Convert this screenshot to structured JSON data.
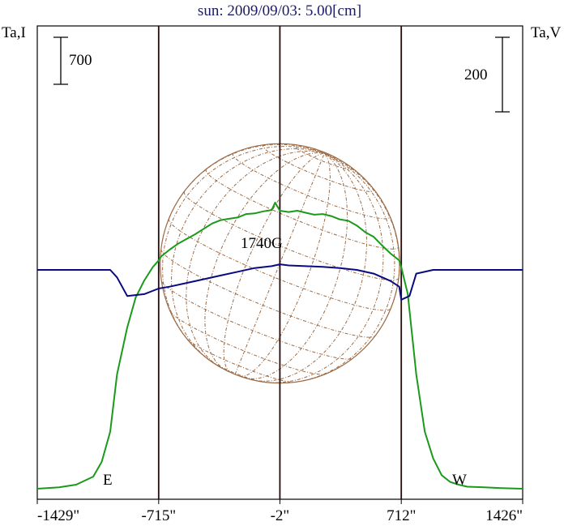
{
  "chart_data": {
    "type": "line",
    "title": "sun: 2009/09/03: 5.00[cm]",
    "left_axis_label": "Ta,I",
    "right_axis_label": "Ta,V",
    "x_ticks": [
      "-1429\"",
      "-715\"",
      "-2\"",
      "712\"",
      "1426\""
    ],
    "x_tick_values": [
      -1429,
      -715,
      -2,
      712,
      1426
    ],
    "xlim": [
      -1429,
      1426
    ],
    "scale_bars": {
      "intensity": "700",
      "polarization": "200"
    },
    "annotations": {
      "east": "E",
      "west": "W",
      "field": "1740G"
    },
    "limb_markers": [
      -715,
      -2,
      712
    ],
    "series": [
      {
        "name": "Ta,I",
        "color": "#1a9a1a",
        "x": [
          -1429,
          -1300,
          -1200,
          -1100,
          -1050,
          -1000,
          -960,
          -900,
          -850,
          -800,
          -750,
          -715,
          -700,
          -650,
          -600,
          -550,
          -500,
          -450,
          -400,
          -350,
          -300,
          -250,
          -200,
          -150,
          -100,
          -50,
          -30,
          -2,
          50,
          100,
          150,
          200,
          250,
          300,
          350,
          400,
          450,
          500,
          550,
          600,
          650,
          700,
          712,
          750,
          800,
          850,
          900,
          950,
          1000,
          1050,
          1100,
          1200,
          1300,
          1426
        ],
        "y": [
          0,
          20,
          60,
          180,
          400,
          850,
          1700,
          2400,
          2850,
          3100,
          3300,
          3400,
          3460,
          3560,
          3650,
          3720,
          3790,
          3870,
          3950,
          4000,
          4020,
          4040,
          4090,
          4100,
          4130,
          4150,
          4260,
          4140,
          4120,
          4140,
          4110,
          4080,
          4090,
          4060,
          4010,
          3990,
          3920,
          3820,
          3750,
          3620,
          3500,
          3400,
          3300,
          2900,
          1700,
          850,
          450,
          200,
          100,
          60,
          30,
          20,
          10,
          0
        ]
      },
      {
        "name": "Ta,V",
        "color": "#0a0a80",
        "x": [
          -1429,
          -1200,
          -1100,
          -1000,
          -960,
          -900,
          -800,
          -715,
          -650,
          -550,
          -450,
          -350,
          -250,
          -150,
          -50,
          -2,
          50,
          150,
          250,
          350,
          450,
          550,
          650,
          700,
          712,
          760,
          800,
          900,
          1000,
          1100,
          1200,
          1426
        ],
        "y": [
          0,
          0,
          0,
          0,
          -20,
          -70,
          -65,
          -50,
          -45,
          -35,
          -25,
          -15,
          -5,
          5,
          10,
          15,
          12,
          10,
          8,
          5,
          0,
          -10,
          -30,
          -45,
          -80,
          -70,
          -10,
          0,
          0,
          0,
          0,
          0
        ]
      }
    ],
    "grid": false
  }
}
